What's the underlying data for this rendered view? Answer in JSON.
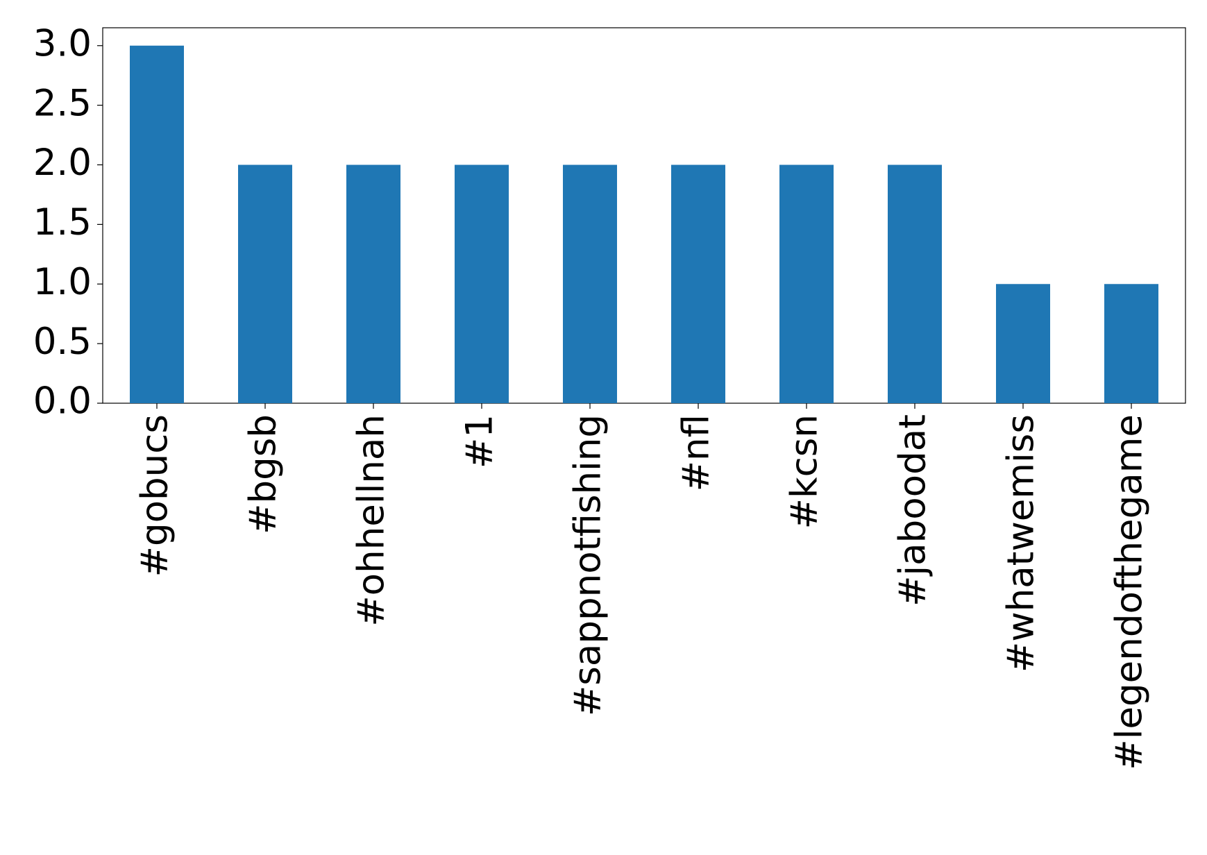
{
  "chart_data": {
    "type": "bar",
    "categories": [
      "#gobucs",
      "#bgsb",
      "#ohhellnah",
      "#1",
      "#sappnotfishing",
      "#nfl",
      "#kcsn",
      "#jaboodat",
      "#whatwemiss",
      "#legendofthegame"
    ],
    "values": [
      3,
      2,
      2,
      2,
      2,
      2,
      2,
      2,
      1,
      1
    ],
    "color": "#1f77b4",
    "ylim": [
      0,
      3.15
    ],
    "yticks": [
      {
        "value": 0,
        "label": "0.0"
      },
      0.5,
      {
        "value": 1,
        "label": "1.0"
      },
      1.5,
      {
        "value": 2,
        "label": "2.0"
      },
      2.5,
      {
        "value": 3,
        "label": "3.0"
      }
    ],
    "grid": false
  }
}
